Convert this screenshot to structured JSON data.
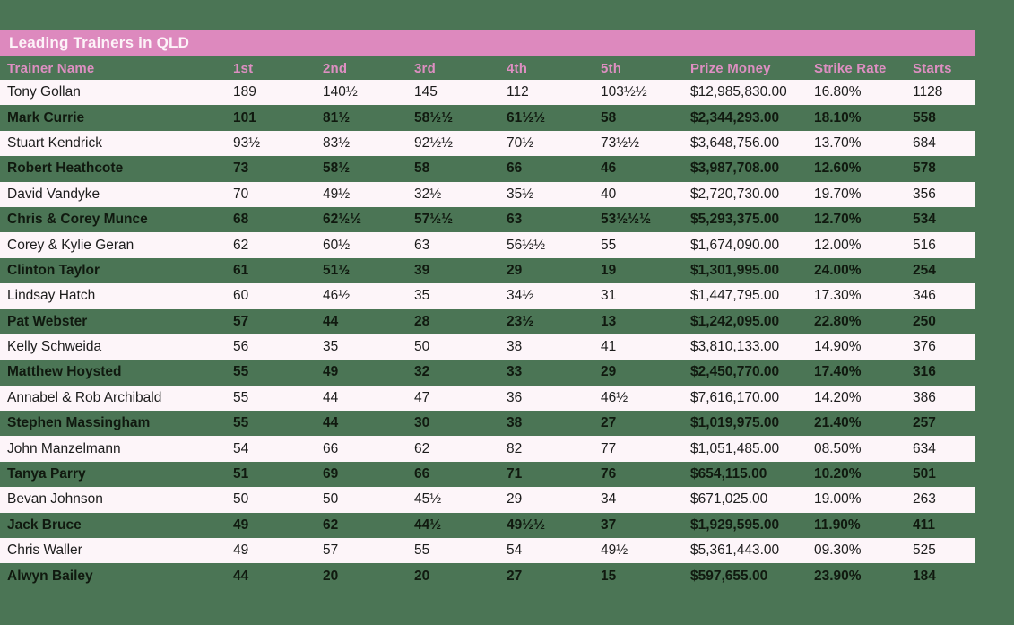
{
  "title": "Leading Trainers in QLD",
  "colors": {
    "background_green": "#4b7555",
    "accent_pink": "#dd89be",
    "header_text_pink": "#de8fc2",
    "light_row_background": "#fdf5f9",
    "title_text": "#fdf3f8",
    "dark_row_text": "#10190f",
    "light_row_text": "#1c1c1c"
  },
  "chart_data": {
    "type": "table",
    "title": "Leading Trainers in QLD",
    "columns": [
      "Trainer Name",
      "1st",
      "2nd",
      "3rd",
      "4th",
      "5th",
      "Prize Money",
      "Strike Rate",
      "Starts"
    ],
    "rows": [
      [
        "Tony Gollan",
        "189",
        "140½",
        "145",
        "112",
        "103½½",
        "$12,985,830.00",
        "16.80%",
        "1128"
      ],
      [
        "Mark Currie",
        "101",
        "81½",
        "58½½",
        "61½½",
        "58",
        "$2,344,293.00",
        "18.10%",
        "558"
      ],
      [
        "Stuart Kendrick",
        "93½",
        "83½",
        "92½½",
        "70½",
        "73½½",
        "$3,648,756.00",
        "13.70%",
        "684"
      ],
      [
        "Robert Heathcote",
        "73",
        "58½",
        "58",
        "66",
        "46",
        "$3,987,708.00",
        "12.60%",
        "578"
      ],
      [
        "David Vandyke",
        "70",
        "49½",
        "32½",
        "35½",
        "40",
        "$2,720,730.00",
        "19.70%",
        "356"
      ],
      [
        "Chris & Corey Munce",
        "68",
        "62½½",
        "57½½",
        "63",
        "53½½½",
        "$5,293,375.00",
        "12.70%",
        "534"
      ],
      [
        "Corey & Kylie Geran",
        "62",
        "60½",
        "63",
        "56½½",
        "55",
        "$1,674,090.00",
        "12.00%",
        "516"
      ],
      [
        "Clinton Taylor",
        "61",
        "51½",
        "39",
        "29",
        "19",
        "$1,301,995.00",
        "24.00%",
        "254"
      ],
      [
        "Lindsay Hatch",
        "60",
        "46½",
        "35",
        "34½",
        "31",
        "$1,447,795.00",
        "17.30%",
        "346"
      ],
      [
        "Pat Webster",
        "57",
        "44",
        "28",
        "23½",
        "13",
        "$1,242,095.00",
        "22.80%",
        "250"
      ],
      [
        "Kelly Schweida",
        "56",
        "35",
        "50",
        "38",
        "41",
        "$3,810,133.00",
        "14.90%",
        "376"
      ],
      [
        "Matthew Hoysted",
        "55",
        "49",
        "32",
        "33",
        "29",
        "$2,450,770.00",
        "17.40%",
        "316"
      ],
      [
        "Annabel & Rob Archibald",
        "55",
        "44",
        "47",
        "36",
        "46½",
        "$7,616,170.00",
        "14.20%",
        "386"
      ],
      [
        "Stephen Massingham",
        "55",
        "44",
        "30",
        "38",
        "27",
        "$1,019,975.00",
        "21.40%",
        "257"
      ],
      [
        "John Manzelmann",
        "54",
        "66",
        "62",
        "82",
        "77",
        "$1,051,485.00",
        "08.50%",
        "634"
      ],
      [
        "Tanya Parry",
        "51",
        "69",
        "66",
        "71",
        "76",
        "$654,115.00",
        "10.20%",
        "501"
      ],
      [
        "Bevan Johnson",
        "50",
        "50",
        "45½",
        "29",
        "34",
        "$671,025.00",
        "19.00%",
        "263"
      ],
      [
        "Jack Bruce",
        "49",
        "62",
        "44½",
        "49½½",
        "37",
        "$1,929,595.00",
        "11.90%",
        "411"
      ],
      [
        "Chris Waller",
        "49",
        "57",
        "55",
        "54",
        "49½",
        "$5,361,443.00",
        "09.30%",
        "525"
      ],
      [
        "Alwyn Bailey",
        "44",
        "20",
        "20",
        "27",
        "15",
        "$597,655.00",
        "23.90%",
        "184"
      ]
    ]
  }
}
